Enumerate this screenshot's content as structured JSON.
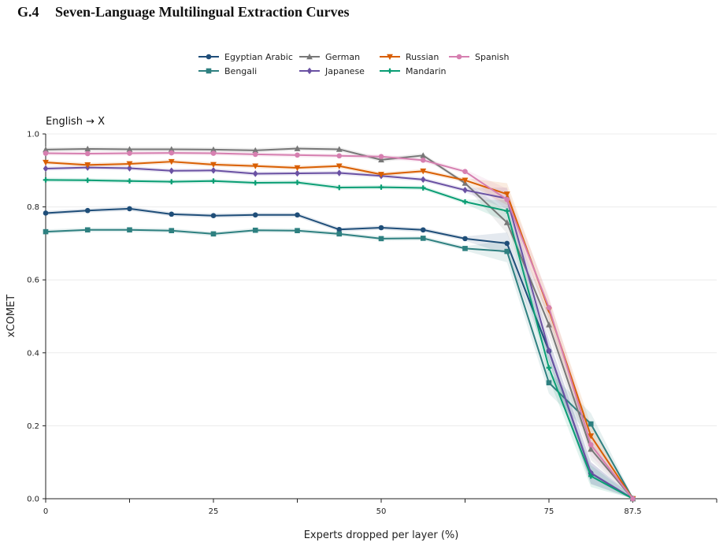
{
  "section": {
    "number": "G.4",
    "title": "Seven-Language Multilingual Extraction Curves"
  },
  "chart_data": {
    "type": "line",
    "panel_label": "English → X",
    "xlabel": "Experts dropped per layer (%)",
    "ylabel": "xCOMET",
    "xlim": [
      0,
      100
    ],
    "ylim": [
      0,
      1.0
    ],
    "xticks": [
      0,
      25,
      50,
      75,
      87.5
    ],
    "xtick_labels": [
      "0",
      "25",
      "50",
      "75",
      "87.5"
    ],
    "yticks": [
      0.0,
      0.2,
      0.4,
      0.6,
      0.8,
      1.0
    ],
    "ytick_labels": [
      "0.0",
      "0.2",
      "0.4",
      "0.6",
      "0.8",
      "1.0"
    ],
    "grid": "horizontal",
    "legend_position": "top-center",
    "x": [
      0,
      6.25,
      12.5,
      18.75,
      25,
      31.25,
      37.5,
      43.75,
      50,
      56.25,
      62.5,
      68.75,
      75,
      81.25,
      87.5
    ],
    "series": [
      {
        "name": "Egyptian Arabic",
        "color": "#1f4e79",
        "marker": "circle",
        "values": [
          0.783,
          0.79,
          0.795,
          0.78,
          0.776,
          0.778,
          0.778,
          0.738,
          0.743,
          0.737,
          0.713,
          0.7,
          0.405,
          0.07,
          0.0
        ]
      },
      {
        "name": "Bengali",
        "color": "#2e8080",
        "marker": "square",
        "values": [
          0.732,
          0.737,
          0.737,
          0.735,
          0.726,
          0.736,
          0.735,
          0.726,
          0.713,
          0.714,
          0.686,
          0.678,
          0.318,
          0.205,
          0.0
        ]
      },
      {
        "name": "German",
        "color": "#777777",
        "marker": "triangle-up",
        "values": [
          0.957,
          0.959,
          0.958,
          0.958,
          0.957,
          0.955,
          0.96,
          0.958,
          0.929,
          0.941,
          0.865,
          0.757,
          0.477,
          0.136,
          0.0
        ]
      },
      {
        "name": "Japanese",
        "color": "#6a51a3",
        "marker": "diamond",
        "values": [
          0.905,
          0.908,
          0.906,
          0.899,
          0.9,
          0.891,
          0.892,
          0.893,
          0.885,
          0.875,
          0.846,
          0.823,
          0.406,
          0.071,
          0.0
        ]
      },
      {
        "name": "Russian",
        "color": "#d95f02",
        "marker": "triangle-down",
        "values": [
          0.922,
          0.915,
          0.918,
          0.924,
          0.916,
          0.912,
          0.907,
          0.912,
          0.889,
          0.898,
          0.873,
          0.835,
          0.517,
          0.172,
          0.0
        ]
      },
      {
        "name": "Mandarin",
        "color": "#0a9e74",
        "marker": "plus",
        "values": [
          0.874,
          0.873,
          0.871,
          0.869,
          0.871,
          0.866,
          0.867,
          0.853,
          0.854,
          0.852,
          0.814,
          0.789,
          0.359,
          0.062,
          0.0
        ]
      },
      {
        "name": "Spanish",
        "color": "#d67fb0",
        "marker": "circle",
        "values": [
          0.947,
          0.946,
          0.947,
          0.948,
          0.947,
          0.944,
          0.942,
          0.94,
          0.938,
          0.928,
          0.897,
          0.82,
          0.524,
          0.148,
          0.0
        ]
      }
    ]
  }
}
